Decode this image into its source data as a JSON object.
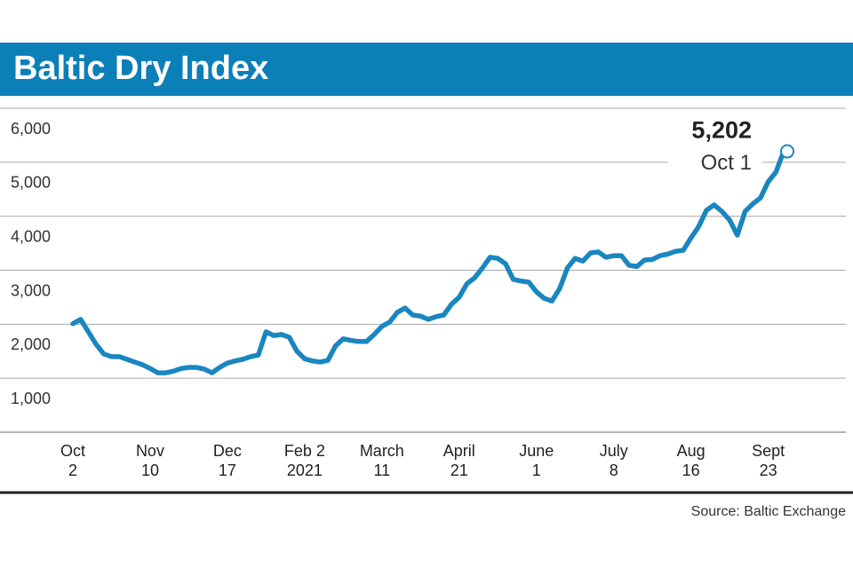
{
  "chart_data": {
    "type": "line",
    "title": "Baltic Dry Index",
    "source": "Source: Baltic Exchange",
    "annotation": "Oct 1",
    "categories": [
      "Oct\n2",
      null,
      null,
      null,
      null,
      null,
      null,
      null,
      null,
      null,
      "Nov\n10",
      null,
      null,
      null,
      null,
      null,
      null,
      null,
      null,
      null,
      "Dec\n17",
      null,
      null,
      null,
      null,
      null,
      null,
      null,
      null,
      null,
      "Feb 2\n2021",
      null,
      null,
      null,
      null,
      null,
      null,
      null,
      null,
      null,
      "March\n11",
      null,
      null,
      null,
      null,
      null,
      null,
      null,
      null,
      null,
      "April\n21",
      null,
      null,
      null,
      null,
      null,
      null,
      null,
      null,
      null,
      "June\n1",
      null,
      null,
      null,
      null,
      null,
      null,
      null,
      null,
      null,
      "July\n8",
      null,
      null,
      null,
      null,
      null,
      null,
      null,
      null,
      null,
      "Aug\n16",
      null,
      null,
      null,
      null,
      null,
      null,
      null,
      null,
      null,
      "Sept\n23",
      null,
      null
    ],
    "series": [
      {
        "name": "Baltic Dry Index",
        "color": "#1a86c0",
        "values": [
          2010,
          2090,
          1860,
          1630,
          1450,
          1400,
          1400,
          1350,
          1300,
          1250,
          1180,
          1100,
          1100,
          1130,
          1180,
          1200,
          1200,
          1170,
          1100,
          1200,
          1280,
          1320,
          1350,
          1400,
          1430,
          1860,
          1790,
          1810,
          1760,
          1500,
          1360,
          1320,
          1300,
          1330,
          1600,
          1730,
          1700,
          1680,
          1680,
          1810,
          1960,
          2040,
          2220,
          2300,
          2170,
          2150,
          2090,
          2140,
          2170,
          2370,
          2500,
          2750,
          2860,
          3040,
          3240,
          3220,
          3120,
          2830,
          2800,
          2780,
          2600,
          2480,
          2430,
          2660,
          3040,
          3220,
          3170,
          3320,
          3340,
          3240,
          3270,
          3270,
          3090,
          3070,
          3190,
          3200,
          3270,
          3300,
          3350,
          3370,
          3600,
          3810,
          4110,
          4210,
          4090,
          3930,
          3650,
          4090,
          4230,
          4340,
          4640,
          4820,
          5202
        ],
        "value_labels": [
          null,
          null,
          null,
          null,
          null,
          null,
          null,
          null,
          null,
          null,
          null,
          null,
          null,
          null,
          null,
          null,
          null,
          null,
          null,
          null,
          null,
          null,
          null,
          null,
          null,
          null,
          null,
          null,
          null,
          null,
          null,
          null,
          null,
          null,
          null,
          null,
          null,
          null,
          null,
          null,
          null,
          null,
          null,
          null,
          null,
          null,
          null,
          null,
          null,
          null,
          null,
          null,
          null,
          null,
          null,
          null,
          null,
          null,
          null,
          null,
          null,
          null,
          null,
          null,
          null,
          null,
          null,
          null,
          null,
          null,
          null,
          null,
          null,
          null,
          null,
          null,
          null,
          null,
          null,
          null,
          null,
          null,
          null,
          null,
          null,
          null,
          null,
          null,
          null,
          null,
          null,
          null,
          "5,202"
        ]
      }
    ],
    "ylim": [
      0,
      6000
    ],
    "yticks": [
      {
        "value": 1000,
        "label": "1,000"
      },
      {
        "value": 2000,
        "label": "2,000"
      },
      {
        "value": 3000,
        "label": "3,000"
      },
      {
        "value": 4000,
        "label": "4,000"
      },
      {
        "value": 5000,
        "label": "5,000"
      },
      {
        "value": 6000,
        "label": "6,000"
      }
    ],
    "grid": true
  }
}
